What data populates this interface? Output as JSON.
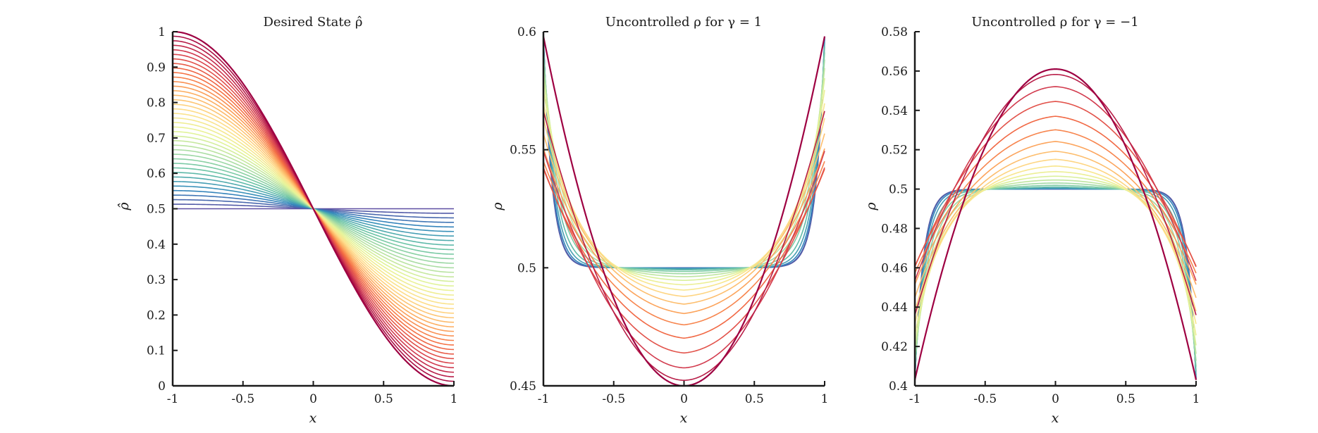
{
  "colors": {
    "axis": "#1a1a1a",
    "palette": [
      "#5e4fa2",
      "#3288bd",
      "#66c2a5",
      "#abdda4",
      "#e6f598",
      "#fee08b",
      "#fdae61",
      "#f46d43",
      "#d53e4f",
      "#9e0142"
    ],
    "final_curve": "#9e0142"
  },
  "chart_data": [
    {
      "type": "line",
      "title": "Desired State ρ̂",
      "xlabel": "x",
      "ylabel": "ρ̂",
      "xlim": [
        -1,
        1
      ],
      "ylim": [
        0,
        1
      ],
      "xticks": [
        "-1",
        "-0.5",
        "0",
        "0.5",
        "1"
      ],
      "yticks": [
        "0",
        "0.1",
        "0.2",
        "0.3",
        "0.4",
        "0.5",
        "0.6",
        "0.7",
        "0.8",
        "0.9",
        "1"
      ],
      "family": "linear-cosine blend from flat 0.5 to 0.5 + 0.5·cos(π(x+1)/2)",
      "series_count": 40,
      "final_series": {
        "x": [
          -1,
          -0.5,
          0,
          0.5,
          1
        ],
        "y": [
          1.0,
          0.854,
          0.5,
          0.146,
          0.0
        ]
      }
    },
    {
      "type": "line",
      "title": "Uncontrolled ρ for γ = 1",
      "xlabel": "x",
      "ylabel": "ρ",
      "xlim": [
        -1,
        1
      ],
      "ylim": [
        0.45,
        0.6
      ],
      "xticks": [
        "-1",
        "-0.5",
        "0",
        "0.5",
        "1"
      ],
      "yticks": [
        "0.45",
        "0.5",
        "0.55",
        "0.6"
      ],
      "series_count": 20,
      "final_series": {
        "x": [
          -1,
          -0.55,
          0,
          0.55,
          1
        ],
        "y": [
          0.598,
          0.492,
          0.45,
          0.492,
          0.598
        ]
      }
    },
    {
      "type": "line",
      "title": "Uncontrolled ρ for γ = −1",
      "xlabel": "x",
      "ylabel": "ρ",
      "xlim": [
        -1,
        1
      ],
      "ylim": [
        0.4,
        0.58
      ],
      "xticks": [
        "-1",
        "-0.5",
        "0",
        "0.5",
        "1"
      ],
      "yticks": [
        "0.4",
        "0.42",
        "0.44",
        "0.46",
        "0.48",
        "0.5",
        "0.52",
        "0.54",
        "0.56",
        "0.58"
      ],
      "series_count": 20,
      "final_series": {
        "x": [
          -1,
          -0.55,
          0,
          0.55,
          1
        ],
        "y": [
          0.403,
          0.505,
          0.561,
          0.505,
          0.403
        ]
      }
    }
  ]
}
